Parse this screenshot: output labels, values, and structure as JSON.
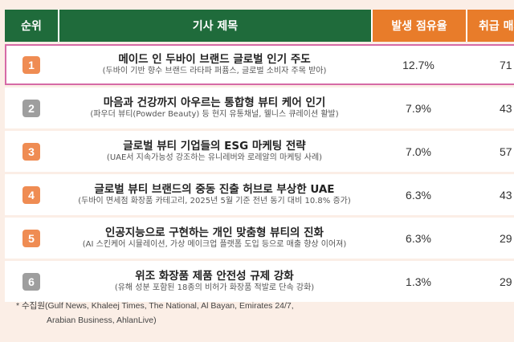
{
  "header": {
    "rank": "순위",
    "title": "기사 제목",
    "share": "발생 점유율",
    "trade": "취급 매제"
  },
  "rows": [
    {
      "rank": "1",
      "main": "메이드 인 두바이 브랜드 글로벌 인기 주도",
      "sub": "(두바이 기반 향수 브랜드 라타파 퍼퓸스, 글로벌 소비자 주목 받아)",
      "share": "12.7%",
      "trade": "71"
    },
    {
      "rank": "2",
      "main": "마음과 건강까지 아우르는 통합형 뷰티 케어 인기",
      "sub": "(파우더 뷰티(Powder Beauty) 등 현지 유통채널, 웰니스 큐레이션 활발)",
      "share": "7.9%",
      "trade": "43"
    },
    {
      "rank": "3",
      "main": "글로벌 뷰티 기업들의 ESG 마케팅 전략",
      "sub": "(UAE서 지속가능성 강조하는 유니레버와 로레알의 마케팅 사례)",
      "share": "7.0%",
      "trade": "57"
    },
    {
      "rank": "4",
      "main": "글로벌 뷰티 브랜드의 중동 진출 허브로 부상한 UAE",
      "sub": "(두바이 면세점 화장품 카테고리, 2025년 5월 기준 전년 동기 대비 10.8% 증가)",
      "share": "6.3%",
      "trade": "43"
    },
    {
      "rank": "5",
      "main": "인공지능으로 구현하는 개인 맞춤형 뷰티의 진화",
      "sub": "(AI 스킨케어 시뮬레이션, 가상 메이크업 플랫폼 도입 등으로 매출 향상 이어져)",
      "share": "6.3%",
      "trade": "29"
    },
    {
      "rank": "6",
      "main": "위조 화장품 제품 안전성 규제 강화",
      "sub": "(유해 성분 포함된 18종의 비허가 화장품 적발로 단속 강화)",
      "share": "1.3%",
      "trade": "29"
    }
  ],
  "source": {
    "line1": "* 수집원(Gulf News, Khaleej Times, The National, Al Bayan, Emirates 24/7,",
    "line2": "Arabian Business, AhlanLive)"
  },
  "colors": {
    "header_green": "#1f6b3b",
    "header_orange": "#e87c2a",
    "badge_orange": "#ef8c53",
    "badge_gray": "#9e9e9e",
    "highlight": "#d66aa6"
  }
}
